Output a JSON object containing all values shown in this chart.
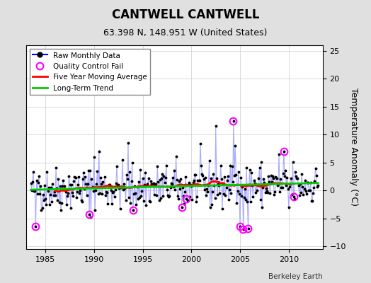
{
  "title": "CANTWELL CANTWELL",
  "subtitle": "63.398 N, 148.951 W (United States)",
  "ylabel": "Temperature Anomaly (°C)",
  "attribution": "Berkeley Earth",
  "xlim": [
    1983.0,
    2013.5
  ],
  "ylim": [
    -10.5,
    26
  ],
  "yticks": [
    -10,
    -5,
    0,
    5,
    10,
    15,
    20,
    25
  ],
  "xticks": [
    1985,
    1990,
    1995,
    2000,
    2005,
    2010
  ],
  "bg_color": "#e0e0e0",
  "plot_bg_color": "#ffffff",
  "raw_line_color": "#aaaaff",
  "raw_dot_color": "#000000",
  "raw_line_color_legend": "#0000ff",
  "qc_fail_color": "#ff00ff",
  "moving_avg_color": "#ff0000",
  "trend_color": "#00cc00",
  "seed": 42,
  "title_fontsize": 12,
  "subtitle_fontsize": 9,
  "ylabel_fontsize": 9,
  "tick_fontsize": 8
}
